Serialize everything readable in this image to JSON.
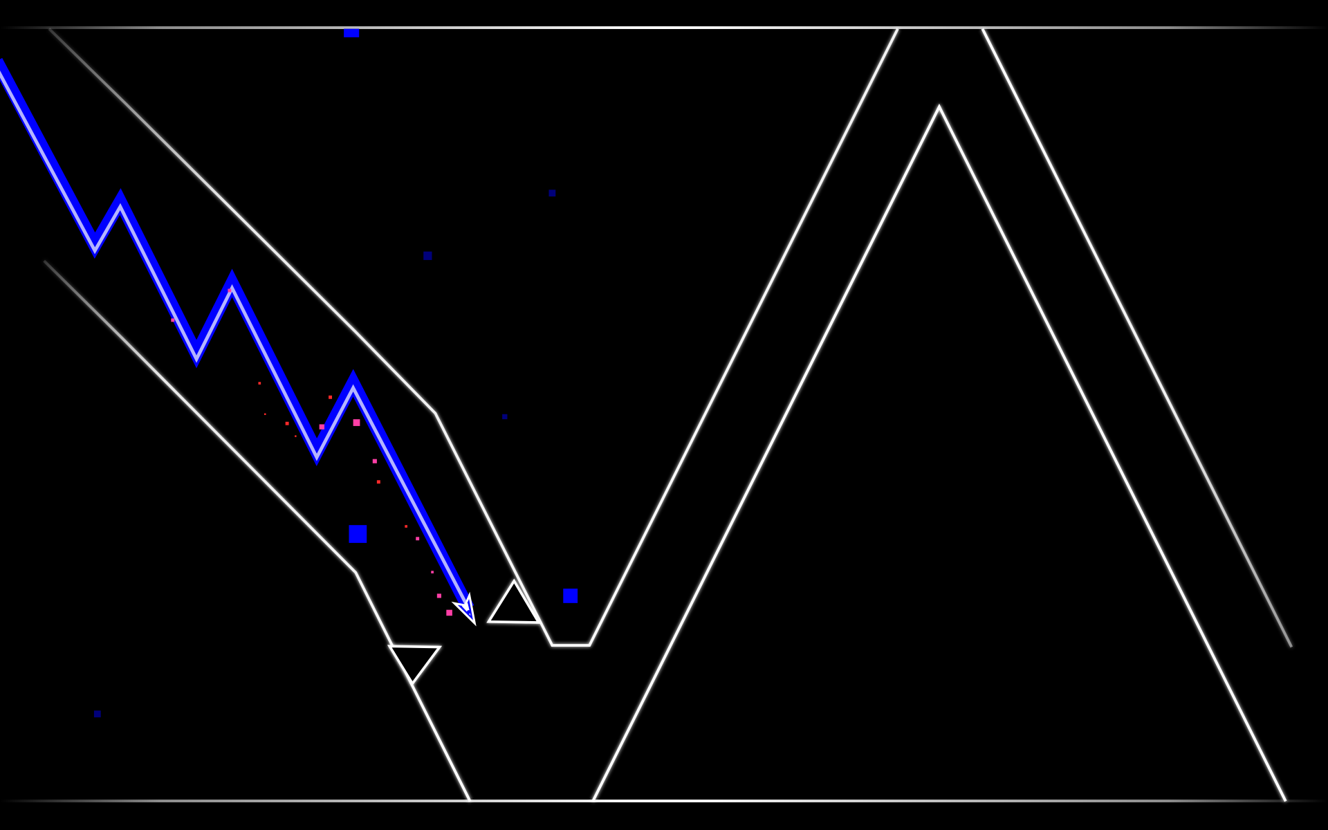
{
  "game": {
    "mode": "wave",
    "colors": {
      "background": "#000000",
      "wall_outline": "#ffffff",
      "trail_primary": "#0000ff",
      "trail_highlight": "#c8c8ff",
      "particle_pink": "#ff3fa6",
      "particle_red": "#ff2a2a",
      "square_blue": "#0000ff",
      "square_dark_blue": "#00007a"
    },
    "player": {
      "icon": "wave-icon",
      "primary_color": "#0000ff",
      "secondary_color": "#ffffff"
    },
    "hazards": {
      "spike_count": 2
    }
  }
}
